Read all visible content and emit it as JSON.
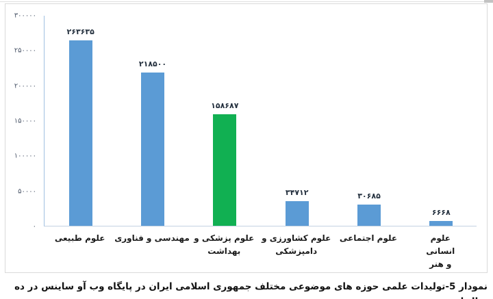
{
  "page": {
    "caption": "نمودار 5-تولیدات علمی حوزه های موضوعی مختلف جمهوری اسلامی ایران در پایگاه وب آو ساینس در ده سال اخیر"
  },
  "chart_data": {
    "type": "bar",
    "title": "",
    "xlabel": "",
    "ylabel": "",
    "grid": false,
    "legend": null,
    "rtl_labels": true,
    "categories": [
      "علوم طبیعی",
      "مهندسی و فناوری",
      "علوم پزشکی و بهداشت",
      "علوم کشاورزی و دامپزشکی",
      "علوم اجتماعی",
      "علوم انسانی و هنر"
    ],
    "category_lines": [
      [
        "علوم طبیعی"
      ],
      [
        "مهندسی و فناوری"
      ],
      [
        "علوم پزشکی و",
        "بهداشت"
      ],
      [
        "علوم کشاورزی و",
        "دامپزشکی"
      ],
      [
        "علوم اجتماعی"
      ],
      [
        "علوم انسانی و هنر"
      ]
    ],
    "values": [
      263635,
      218500,
      158687,
      34712,
      30685,
      6668
    ],
    "value_labels": [
      "۲۶۳۶۳۵",
      "۲۱۸۵۰۰",
      "۱۵۸۶۸۷",
      "۳۴۷۱۲",
      "۳۰۶۸۵",
      "۶۶۶۸"
    ],
    "bar_colors": [
      "#5B9BD5",
      "#5B9BD5",
      "#11B052",
      "#5B9BD5",
      "#5B9BD5",
      "#5B9BD5"
    ],
    "ylim": [
      0,
      300000
    ],
    "y_ticks": [
      0,
      50000,
      100000,
      150000,
      200000,
      250000,
      300000
    ],
    "y_tick_labels": [
      "۰",
      "۵۰۰۰۰",
      "۱۰۰۰۰۰",
      "۱۵۰۰۰۰",
      "۲۰۰۰۰۰",
      "۲۵۰۰۰۰",
      "۳۰۰۰۰۰"
    ]
  },
  "colors": {
    "bar_blue": "#5B9BD5",
    "bar_green": "#11B052",
    "y_axis_line": "#9FC0E2",
    "x_axis_line": "#C3D2E2",
    "tick_label": "#4A5568",
    "value_label": "#24303E",
    "category_label": "#1B1B1B",
    "frame_border": "#D9D9D9",
    "caption_text": "#121212"
  }
}
